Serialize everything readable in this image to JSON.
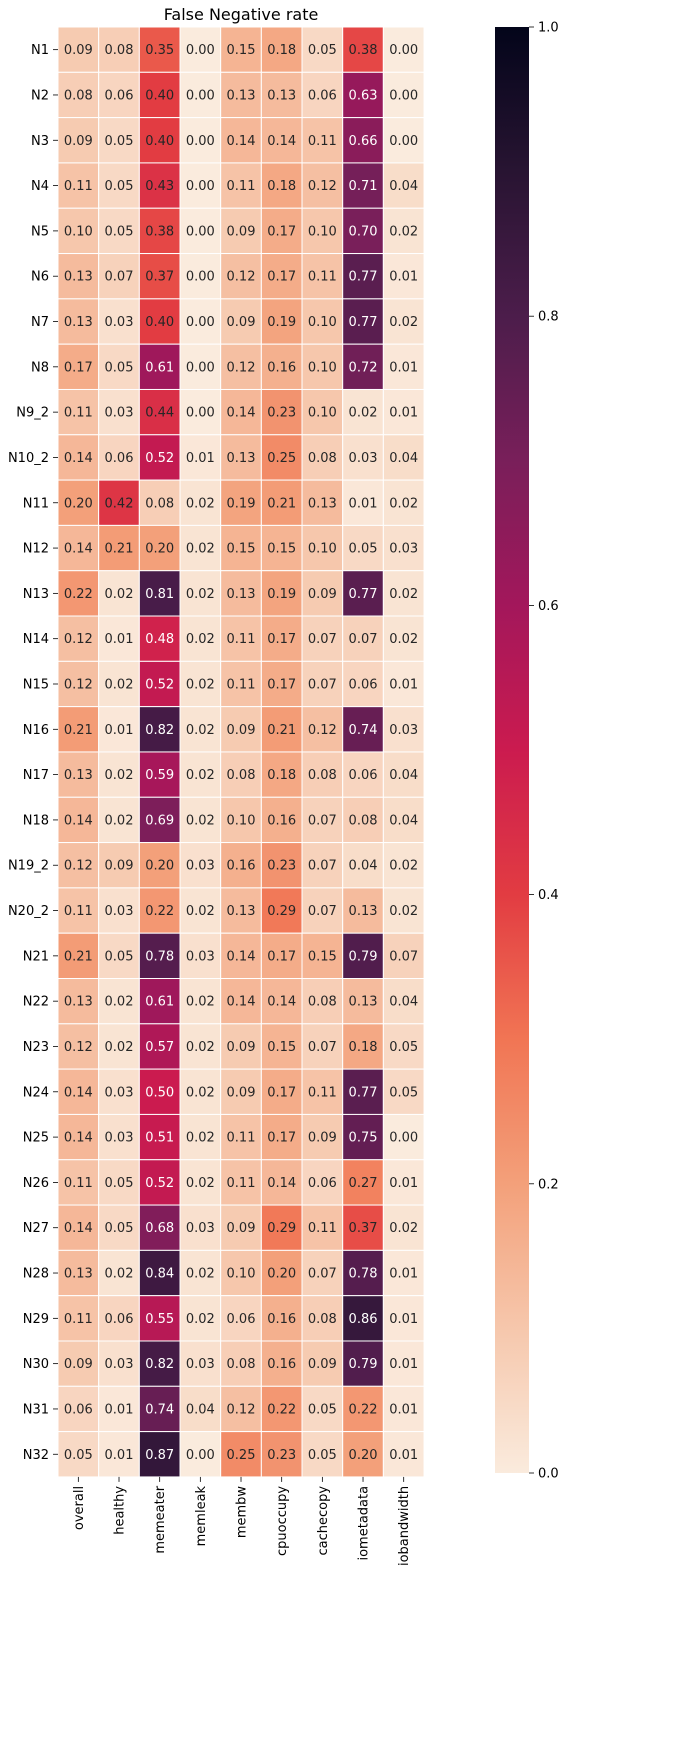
{
  "chart_data": {
    "type": "heatmap",
    "title": "False Negative rate",
    "xlabel": "",
    "ylabel": "",
    "rows": [
      "N1",
      "N2",
      "N3",
      "N4",
      "N5",
      "N6",
      "N7",
      "N8",
      "N9_2",
      "N10_2",
      "N11",
      "N12",
      "N13",
      "N14",
      "N15",
      "N16",
      "N17",
      "N18",
      "N19_2",
      "N20_2",
      "N21",
      "N22",
      "N23",
      "N24",
      "N25",
      "N26",
      "N27",
      "N28",
      "N29",
      "N30",
      "N31",
      "N32"
    ],
    "columns": [
      "overall",
      "healthy",
      "memeater",
      "memleak",
      "membw",
      "cpuoccupy",
      "cachecopy",
      "iometadata",
      "iobandwidth"
    ],
    "values": [
      [
        0.09,
        0.08,
        0.35,
        0.0,
        0.15,
        0.18,
        0.05,
        0.38,
        0.0
      ],
      [
        0.08,
        0.06,
        0.4,
        0.0,
        0.13,
        0.13,
        0.06,
        0.63,
        0.0
      ],
      [
        0.09,
        0.05,
        0.4,
        0.0,
        0.14,
        0.14,
        0.11,
        0.66,
        0.0
      ],
      [
        0.11,
        0.05,
        0.43,
        0.0,
        0.11,
        0.18,
        0.12,
        0.71,
        0.04
      ],
      [
        0.1,
        0.05,
        0.38,
        0.0,
        0.09,
        0.17,
        0.1,
        0.7,
        0.02
      ],
      [
        0.13,
        0.07,
        0.37,
        0.0,
        0.12,
        0.17,
        0.11,
        0.77,
        0.01
      ],
      [
        0.13,
        0.03,
        0.4,
        0.0,
        0.09,
        0.19,
        0.1,
        0.77,
        0.02
      ],
      [
        0.17,
        0.05,
        0.61,
        0.0,
        0.12,
        0.16,
        0.1,
        0.72,
        0.01
      ],
      [
        0.11,
        0.03,
        0.44,
        0.0,
        0.14,
        0.23,
        0.1,
        0.02,
        0.01
      ],
      [
        0.14,
        0.06,
        0.52,
        0.01,
        0.13,
        0.25,
        0.08,
        0.03,
        0.04
      ],
      [
        0.2,
        0.42,
        0.08,
        0.02,
        0.19,
        0.21,
        0.13,
        0.01,
        0.02
      ],
      [
        0.14,
        0.21,
        0.2,
        0.02,
        0.15,
        0.15,
        0.1,
        0.05,
        0.03
      ],
      [
        0.22,
        0.02,
        0.81,
        0.02,
        0.13,
        0.19,
        0.09,
        0.77,
        0.02
      ],
      [
        0.12,
        0.01,
        0.48,
        0.02,
        0.11,
        0.17,
        0.07,
        0.07,
        0.02
      ],
      [
        0.12,
        0.02,
        0.52,
        0.02,
        0.11,
        0.17,
        0.07,
        0.06,
        0.01
      ],
      [
        0.21,
        0.01,
        0.82,
        0.02,
        0.09,
        0.21,
        0.12,
        0.74,
        0.03
      ],
      [
        0.13,
        0.02,
        0.59,
        0.02,
        0.08,
        0.18,
        0.08,
        0.06,
        0.04
      ],
      [
        0.14,
        0.02,
        0.69,
        0.02,
        0.1,
        0.16,
        0.07,
        0.08,
        0.04
      ],
      [
        0.12,
        0.09,
        0.2,
        0.03,
        0.16,
        0.23,
        0.07,
        0.04,
        0.02
      ],
      [
        0.11,
        0.03,
        0.22,
        0.02,
        0.13,
        0.29,
        0.07,
        0.13,
        0.02
      ],
      [
        0.21,
        0.05,
        0.78,
        0.03,
        0.14,
        0.17,
        0.15,
        0.79,
        0.07
      ],
      [
        0.13,
        0.02,
        0.61,
        0.02,
        0.14,
        0.14,
        0.08,
        0.13,
        0.04
      ],
      [
        0.12,
        0.02,
        0.57,
        0.02,
        0.09,
        0.15,
        0.07,
        0.18,
        0.05
      ],
      [
        0.14,
        0.03,
        0.5,
        0.02,
        0.09,
        0.17,
        0.11,
        0.77,
        0.05
      ],
      [
        0.14,
        0.03,
        0.51,
        0.02,
        0.11,
        0.17,
        0.09,
        0.75,
        0.0
      ],
      [
        0.11,
        0.05,
        0.52,
        0.02,
        0.11,
        0.14,
        0.06,
        0.27,
        0.01
      ],
      [
        0.14,
        0.05,
        0.68,
        0.03,
        0.09,
        0.29,
        0.11,
        0.37,
        0.02
      ],
      [
        0.13,
        0.02,
        0.84,
        0.02,
        0.1,
        0.2,
        0.07,
        0.78,
        0.01
      ],
      [
        0.11,
        0.06,
        0.55,
        0.02,
        0.06,
        0.16,
        0.08,
        0.86,
        0.01
      ],
      [
        0.09,
        0.03,
        0.82,
        0.03,
        0.08,
        0.16,
        0.09,
        0.79,
        0.01
      ],
      [
        0.06,
        0.01,
        0.74,
        0.04,
        0.12,
        0.22,
        0.05,
        0.22,
        0.01
      ],
      [
        0.05,
        0.01,
        0.87,
        0.0,
        0.25,
        0.23,
        0.05,
        0.2,
        0.01
      ]
    ],
    "vmin": 0.0,
    "vmax": 1.0,
    "colormap": "rocket_r",
    "value_format": "2-decimal",
    "colorbar": {
      "ticks": [
        0.0,
        0.2,
        0.4,
        0.6,
        0.8,
        1.0
      ],
      "tick_labels": [
        "0.0",
        "0.2",
        "0.4",
        "0.6",
        "0.8",
        "1.0"
      ]
    },
    "cell_separator_color": "#ffffff",
    "grid": false,
    "legend": "colorbar-right"
  }
}
